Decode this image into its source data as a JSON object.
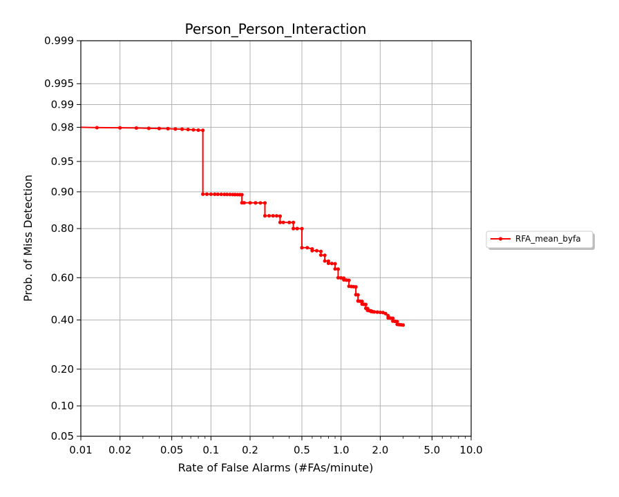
{
  "chart_data": {
    "type": "line",
    "title": "Person_Person_Interaction",
    "xlabel": "Rate of False Alarms (#FAs/minute)",
    "ylabel": "Prob. of Miss Detection",
    "x_scale": "log",
    "y_scale": "normal-deviate",
    "xlim": [
      0.01,
      10.0
    ],
    "ylim": [
      0.05,
      0.999
    ],
    "x_ticks": [
      0.01,
      0.02,
      0.05,
      0.1,
      0.2,
      0.5,
      1.0,
      2.0,
      5.0,
      10.0
    ],
    "x_tick_labels": [
      "0.01",
      "0.02",
      "0.05",
      "0.1",
      "0.2",
      "0.5",
      "1.0",
      "2.0",
      "5.0",
      "10.0"
    ],
    "y_ticks": [
      0.05,
      0.1,
      0.2,
      0.4,
      0.6,
      0.8,
      0.9,
      0.95,
      0.98,
      0.99,
      0.995,
      0.999
    ],
    "y_tick_labels": [
      "0.05",
      "0.10",
      "0.20",
      "0.40",
      "0.60",
      "0.80",
      "0.90",
      "0.95",
      "0.98",
      "0.99",
      "0.995",
      "0.999"
    ],
    "grid": true,
    "legend_position": "right",
    "series": [
      {
        "name": "RFA_mean_byfa",
        "color": "#ff0000",
        "marker": "dot",
        "x": [
          0.01,
          0.0133,
          0.02,
          0.0267,
          0.0333,
          0.04,
          0.0467,
          0.0533,
          0.06,
          0.0667,
          0.0733,
          0.08,
          0.0867,
          0.0867,
          0.093,
          0.1,
          0.107,
          0.113,
          0.12,
          0.127,
          0.133,
          0.14,
          0.147,
          0.153,
          0.16,
          0.167,
          0.173,
          0.173,
          0.18,
          0.2,
          0.22,
          0.24,
          0.26,
          0.26,
          0.28,
          0.3,
          0.32,
          0.34,
          0.34,
          0.36,
          0.4,
          0.43,
          0.43,
          0.46,
          0.5,
          0.5,
          0.55,
          0.6,
          0.6,
          0.65,
          0.7,
          0.7,
          0.75,
          0.75,
          0.8,
          0.8,
          0.85,
          0.9,
          0.9,
          0.95,
          0.95,
          1.0,
          1.05,
          1.05,
          1.1,
          1.15,
          1.15,
          1.2,
          1.25,
          1.3,
          1.3,
          1.35,
          1.35,
          1.4,
          1.45,
          1.45,
          1.5,
          1.55,
          1.55,
          1.6,
          1.6,
          1.65,
          1.7,
          1.7,
          1.75,
          1.8,
          1.9,
          2.0,
          2.1,
          2.2,
          2.3,
          2.3,
          2.4,
          2.5,
          2.5,
          2.6,
          2.7,
          2.7,
          2.8,
          2.9,
          3.0
        ],
        "y": [
          0.98,
          0.9798,
          0.9797,
          0.9796,
          0.9794,
          0.9793,
          0.9792,
          0.979,
          0.9789,
          0.9787,
          0.9785,
          0.9783,
          0.9782,
          0.895,
          0.895,
          0.8949,
          0.8948,
          0.8947,
          0.8946,
          0.8945,
          0.8944,
          0.8943,
          0.8942,
          0.8941,
          0.894,
          0.8939,
          0.8938,
          0.875,
          0.875,
          0.8749,
          0.8748,
          0.8747,
          0.8746,
          0.84,
          0.84,
          0.8399,
          0.8398,
          0.839,
          0.82,
          0.82,
          0.8199,
          0.8198,
          0.8,
          0.7999,
          0.7998,
          0.73,
          0.7299,
          0.725,
          0.718,
          0.7179,
          0.715,
          0.7,
          0.699,
          0.675,
          0.674,
          0.665,
          0.664,
          0.663,
          0.64,
          0.639,
          0.6,
          0.599,
          0.598,
          0.59,
          0.589,
          0.588,
          0.56,
          0.559,
          0.558,
          0.557,
          0.52,
          0.519,
          0.49,
          0.489,
          0.488,
          0.475,
          0.474,
          0.473,
          0.455,
          0.454,
          0.445,
          0.444,
          0.443,
          0.44,
          0.439,
          0.438,
          0.437,
          0.436,
          0.435,
          0.43,
          0.42,
          0.41,
          0.409,
          0.408,
          0.395,
          0.394,
          0.393,
          0.38,
          0.379,
          0.378,
          0.377
        ]
      }
    ]
  }
}
